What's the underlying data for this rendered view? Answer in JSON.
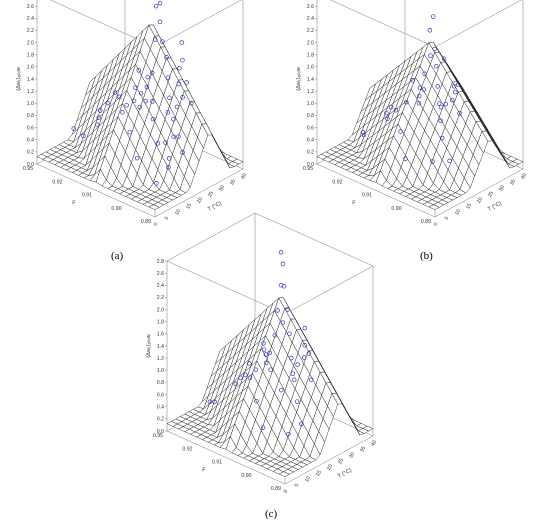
{
  "colors": {
    "points": "#2d36c8",
    "mesh": "#222222",
    "box": "#7a7a7a",
    "surface": "#ffffff"
  },
  "chart_data": [
    {
      "type": "scatter",
      "caption": "(a)",
      "zlabel": "(Δw₁)ₐₗₗₒw",
      "ylabel": "F",
      "xlabel": "T (°C)",
      "zticks": [
        "0.0",
        "0.2",
        "0.4",
        "0.6",
        "0.8",
        "1.0",
        "1.2",
        "1.4",
        "1.6",
        "1.8",
        "2.0",
        "2.2",
        "2.4",
        "2.6",
        "2.8"
      ],
      "yticks": [
        "0.95",
        "0.92",
        "0.91",
        "0.90",
        "0.89"
      ],
      "xticks": [
        "0",
        "5",
        "10",
        "15",
        "20",
        "25",
        "30",
        "35",
        "40"
      ],
      "zlim": [
        0,
        2.8
      ],
      "surface_peak": 2.2,
      "points": [
        {
          "t": 0.38,
          "f": 0.05,
          "z": 0.72
        },
        {
          "t": 0.4,
          "f": 0.1,
          "z": 0.92
        },
        {
          "t": 0.36,
          "f": 0.15,
          "z": 0.55
        },
        {
          "t": 0.3,
          "f": 0.2,
          "z": 0.8
        },
        {
          "t": 0.45,
          "f": 0.18,
          "z": 1.1
        },
        {
          "t": 0.5,
          "f": 0.25,
          "z": 1.35
        },
        {
          "t": 0.55,
          "f": 0.3,
          "z": 1.6
        },
        {
          "t": 0.6,
          "f": 0.35,
          "z": 1.85
        },
        {
          "t": 0.62,
          "f": 0.4,
          "z": 2.05
        },
        {
          "t": 0.66,
          "f": 0.45,
          "z": 2.3
        },
        {
          "t": 0.7,
          "f": 0.48,
          "z": 2.55
        },
        {
          "t": 0.72,
          "f": 0.52,
          "z": 2.7
        },
        {
          "t": 0.75,
          "f": 0.55,
          "z": 2.4
        },
        {
          "t": 0.78,
          "f": 0.58,
          "z": 1.8
        },
        {
          "t": 0.8,
          "f": 0.62,
          "z": 1.2
        },
        {
          "t": 0.82,
          "f": 0.68,
          "z": 0.9
        },
        {
          "t": 0.86,
          "f": 0.72,
          "z": 0.6
        },
        {
          "t": 0.9,
          "f": 0.8,
          "z": 0.4
        },
        {
          "t": 0.2,
          "f": 0.3,
          "z": 0.55
        },
        {
          "t": 0.25,
          "f": 0.4,
          "z": 0.85
        },
        {
          "t": 0.3,
          "f": 0.5,
          "z": 1.05
        },
        {
          "t": 0.35,
          "f": 0.6,
          "z": 1.25
        },
        {
          "t": 0.4,
          "f": 0.7,
          "z": 0.95
        },
        {
          "t": 0.45,
          "f": 0.8,
          "z": 0.7
        },
        {
          "t": 0.5,
          "f": 0.85,
          "z": 0.5
        },
        {
          "t": 0.55,
          "f": 0.9,
          "z": 0.3
        },
        {
          "t": 0.6,
          "f": 0.75,
          "z": 0.85
        },
        {
          "t": 0.65,
          "f": 0.65,
          "z": 1.05
        },
        {
          "t": 0.7,
          "f": 0.7,
          "z": 0.75
        },
        {
          "t": 0.75,
          "f": 0.8,
          "z": 0.55
        },
        {
          "t": 0.15,
          "f": 0.1,
          "z": 0.35
        },
        {
          "t": 0.22,
          "f": 0.05,
          "z": 0.6
        },
        {
          "t": 0.28,
          "f": 0.12,
          "z": 0.9
        },
        {
          "t": 0.32,
          "f": 0.08,
          "z": 1.0
        },
        {
          "t": 0.48,
          "f": 0.05,
          "z": 1.45
        },
        {
          "t": 0.52,
          "f": 0.12,
          "z": 1.7
        },
        {
          "t": 0.58,
          "f": 0.2,
          "z": 1.95
        },
        {
          "t": 0.64,
          "f": 0.25,
          "z": 2.15
        },
        {
          "t": 0.68,
          "f": 0.3,
          "z": 1.65
        },
        {
          "t": 0.74,
          "f": 0.35,
          "z": 1.3
        },
        {
          "t": 0.85,
          "f": 0.4,
          "z": 0.95
        },
        {
          "t": 0.92,
          "f": 0.5,
          "z": 0.65
        },
        {
          "t": 0.95,
          "f": 0.6,
          "z": 0.45
        },
        {
          "t": 0.42,
          "f": 0.92,
          "z": 0.2
        },
        {
          "t": 0.35,
          "f": 0.95,
          "z": 0.35
        },
        {
          "t": 0.58,
          "f": 0.55,
          "z": 1.1
        },
        {
          "t": 0.62,
          "f": 0.6,
          "z": 1.4
        },
        {
          "t": 0.52,
          "f": 0.45,
          "z": 1.5
        },
        {
          "t": 0.44,
          "f": 0.35,
          "z": 1.25
        },
        {
          "t": 0.38,
          "f": 0.3,
          "z": 1.05
        }
      ]
    },
    {
      "type": "scatter",
      "caption": "(b)",
      "zlabel": "(Δw₁)ₐₗₗₒw",
      "ylabel": "F",
      "xlabel": "T (°C)",
      "zticks": [
        "0.0",
        "0.2",
        "0.4",
        "0.6",
        "0.8",
        "1.0",
        "1.2",
        "1.4",
        "1.6",
        "1.8",
        "2.0",
        "2.2",
        "2.4",
        "2.6",
        "2.8"
      ],
      "yticks": [
        "0.95",
        "0.92",
        "0.91",
        "0.90",
        "0.89"
      ],
      "xticks": [
        "0",
        "5",
        "10",
        "15",
        "20",
        "25",
        "30",
        "35",
        "40"
      ],
      "zlim": [
        0,
        2.8
      ],
      "surface_peak": 1.9,
      "points": [
        {
          "t": 0.3,
          "f": 0.1,
          "z": 0.6
        },
        {
          "t": 0.35,
          "f": 0.2,
          "z": 0.85
        },
        {
          "t": 0.4,
          "f": 0.25,
          "z": 1.05
        },
        {
          "t": 0.45,
          "f": 0.3,
          "z": 1.25
        },
        {
          "t": 0.5,
          "f": 0.35,
          "z": 1.45
        },
        {
          "t": 0.55,
          "f": 0.4,
          "z": 1.7
        },
        {
          "t": 0.6,
          "f": 0.45,
          "z": 1.9
        },
        {
          "t": 0.65,
          "f": 0.5,
          "z": 2.35
        },
        {
          "t": 0.68,
          "f": 0.55,
          "z": 2.8
        },
        {
          "t": 0.72,
          "f": 0.58,
          "z": 2.0
        },
        {
          "t": 0.78,
          "f": 0.62,
          "z": 1.5
        },
        {
          "t": 0.82,
          "f": 0.7,
          "z": 1.1
        },
        {
          "t": 0.88,
          "f": 0.75,
          "z": 0.75
        },
        {
          "t": 0.92,
          "f": 0.82,
          "z": 0.55
        },
        {
          "t": 0.2,
          "f": 0.4,
          "z": 0.45
        },
        {
          "t": 0.28,
          "f": 0.5,
          "z": 0.75
        },
        {
          "t": 0.36,
          "f": 0.6,
          "z": 0.95
        },
        {
          "t": 0.44,
          "f": 0.7,
          "z": 0.85
        },
        {
          "t": 0.52,
          "f": 0.8,
          "z": 0.6
        },
        {
          "t": 0.6,
          "f": 0.85,
          "z": 0.4
        },
        {
          "t": 0.68,
          "f": 0.75,
          "z": 0.7
        },
        {
          "t": 0.74,
          "f": 0.68,
          "z": 0.95
        },
        {
          "t": 0.48,
          "f": 0.15,
          "z": 1.2
        },
        {
          "t": 0.56,
          "f": 0.22,
          "z": 1.55
        },
        {
          "t": 0.62,
          "f": 0.3,
          "z": 1.4
        },
        {
          "t": 0.7,
          "f": 0.35,
          "z": 1.2
        },
        {
          "t": 0.8,
          "f": 0.45,
          "z": 0.9
        },
        {
          "t": 0.86,
          "f": 0.55,
          "z": 0.7
        },
        {
          "t": 0.94,
          "f": 0.65,
          "z": 0.5
        },
        {
          "t": 0.4,
          "f": 0.9,
          "z": 0.25
        },
        {
          "t": 0.32,
          "f": 0.85,
          "z": 0.4
        },
        {
          "t": 0.24,
          "f": 0.2,
          "z": 0.55
        },
        {
          "t": 0.42,
          "f": 0.45,
          "z": 1.15
        },
        {
          "t": 0.58,
          "f": 0.62,
          "z": 1.25
        },
        {
          "t": 0.64,
          "f": 0.4,
          "z": 1.75
        }
      ]
    },
    {
      "type": "scatter",
      "caption": "(c)",
      "zlabel": "(Δw₁)ₐₗₗₒw",
      "ylabel": "F",
      "xlabel": "T (°C)",
      "zticks": [
        "0.0",
        "0.2",
        "0.4",
        "0.6",
        "0.8",
        "1.0",
        "1.2",
        "1.4",
        "1.6",
        "1.8",
        "2.0",
        "2.2",
        "2.4",
        "2.6",
        "2.8"
      ],
      "yticks": [
        "0.95",
        "0.92",
        "0.91",
        "0.90",
        "0.89"
      ],
      "xticks": [
        "0",
        "5",
        "10",
        "15",
        "20",
        "25",
        "30",
        "35",
        "40"
      ],
      "zlim": [
        0,
        2.8
      ],
      "surface_peak": 2.1,
      "points": [
        {
          "t": 0.32,
          "f": 0.1,
          "z": 0.65
        },
        {
          "t": 0.38,
          "f": 0.18,
          "z": 0.9
        },
        {
          "t": 0.44,
          "f": 0.25,
          "z": 1.15
        },
        {
          "t": 0.5,
          "f": 0.32,
          "z": 1.4
        },
        {
          "t": 0.56,
          "f": 0.38,
          "z": 1.7
        },
        {
          "t": 0.62,
          "f": 0.44,
          "z": 2.0
        },
        {
          "t": 0.66,
          "f": 0.5,
          "z": 2.3
        },
        {
          "t": 0.7,
          "f": 0.54,
          "z": 2.6
        },
        {
          "t": 0.72,
          "f": 0.57,
          "z": 2.75
        },
        {
          "t": 0.76,
          "f": 0.6,
          "z": 2.15
        },
        {
          "t": 0.8,
          "f": 0.66,
          "z": 1.65
        },
        {
          "t": 0.85,
          "f": 0.72,
          "z": 1.15
        },
        {
          "t": 0.9,
          "f": 0.8,
          "z": 0.75
        },
        {
          "t": 0.94,
          "f": 0.86,
          "z": 0.5
        },
        {
          "t": 0.22,
          "f": 0.35,
          "z": 0.45
        },
        {
          "t": 0.28,
          "f": 0.45,
          "z": 0.75
        },
        {
          "t": 0.34,
          "f": 0.55,
          "z": 1.0
        },
        {
          "t": 0.42,
          "f": 0.65,
          "z": 0.9
        },
        {
          "t": 0.5,
          "f": 0.75,
          "z": 0.7
        },
        {
          "t": 0.58,
          "f": 0.85,
          "z": 0.45
        },
        {
          "t": 0.64,
          "f": 0.78,
          "z": 0.8
        },
        {
          "t": 0.7,
          "f": 0.7,
          "z": 1.05
        },
        {
          "t": 0.46,
          "f": 0.12,
          "z": 1.25
        },
        {
          "t": 0.54,
          "f": 0.2,
          "z": 1.55
        },
        {
          "t": 0.6,
          "f": 0.28,
          "z": 1.85
        },
        {
          "t": 0.68,
          "f": 0.34,
          "z": 1.45
        },
        {
          "t": 0.78,
          "f": 0.42,
          "z": 1.1
        },
        {
          "t": 0.84,
          "f": 0.52,
          "z": 0.85
        },
        {
          "t": 0.92,
          "f": 0.62,
          "z": 0.55
        },
        {
          "t": 0.38,
          "f": 0.92,
          "z": 0.25
        },
        {
          "t": 0.3,
          "f": 0.82,
          "z": 0.4
        },
        {
          "t": 0.24,
          "f": 0.15,
          "z": 0.5
        },
        {
          "t": 0.4,
          "f": 0.42,
          "z": 1.2
        },
        {
          "t": 0.56,
          "f": 0.6,
          "z": 1.35
        },
        {
          "t": 0.62,
          "f": 0.48,
          "z": 1.75
        },
        {
          "t": 0.48,
          "f": 0.52,
          "z": 1.3
        },
        {
          "t": 0.36,
          "f": 0.3,
          "z": 1.0
        },
        {
          "t": 0.74,
          "f": 0.8,
          "z": 0.6
        }
      ]
    }
  ]
}
